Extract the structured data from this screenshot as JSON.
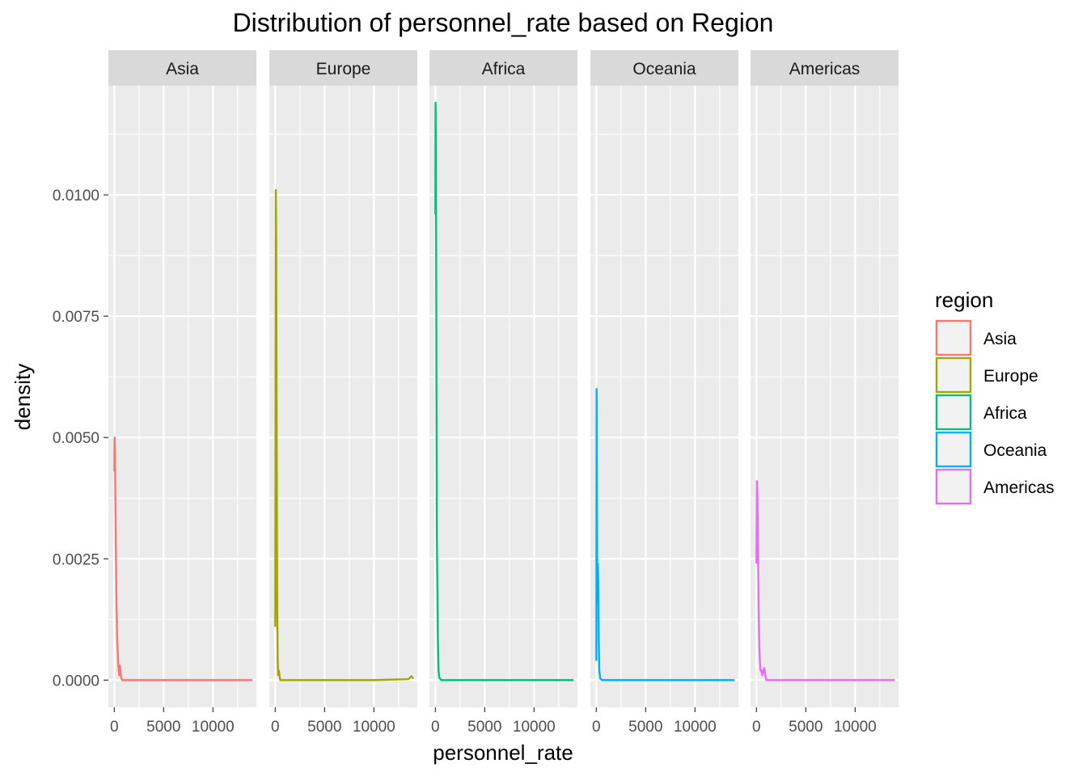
{
  "chart_data": {
    "type": "line",
    "title": "Distribution of personnel_rate based on Region",
    "xlabel": "personnel_rate",
    "ylabel": "density",
    "xlim": [
      -600,
      14400
    ],
    "ylim": [
      -0.00056,
      0.01225
    ],
    "x_ticks": [
      0,
      5000,
      10000
    ],
    "x_tick_labels": [
      "0",
      "5000",
      "10000"
    ],
    "y_ticks": [
      0.0,
      0.0025,
      0.005,
      0.0075,
      0.01
    ],
    "y_tick_labels": [
      "0.0000",
      "0.0025",
      "0.0050",
      "0.0075",
      "0.0100"
    ],
    "grid": true,
    "legend": {
      "title": "region",
      "position": "right"
    },
    "series": [
      {
        "name": "Asia",
        "color": "#F8766D",
        "x": [
          0,
          30,
          60,
          100,
          150,
          220,
          300,
          400,
          500,
          560,
          620,
          700,
          800,
          1000,
          2000,
          5000,
          10000,
          14000
        ],
        "y": [
          0.0043,
          0.005,
          0.0048,
          0.004,
          0.0028,
          0.0016,
          0.0008,
          0.0003,
          0.0001,
          0.0003,
          0.0002,
          5e-05,
          0.0,
          0.0,
          0.0,
          0.0,
          0.0,
          0.0
        ]
      },
      {
        "name": "Europe",
        "color": "#A3A500",
        "x": [
          0,
          30,
          60,
          100,
          150,
          200,
          250,
          300,
          350,
          400,
          500,
          1000,
          5000,
          10000,
          13500,
          13800,
          14000
        ],
        "y": [
          0.0011,
          0.006,
          0.0101,
          0.009,
          0.005,
          0.0015,
          0.0004,
          0.0001,
          0.0002,
          0.00015,
          0.0,
          0.0,
          0.0,
          0.0,
          2e-05,
          8e-05,
          3e-05
        ]
      },
      {
        "name": "Africa",
        "color": "#00BF7D",
        "x": [
          0,
          20,
          50,
          100,
          150,
          200,
          260,
          320,
          400,
          600,
          1000,
          5000,
          10000,
          14000
        ],
        "y": [
          0.0096,
          0.0119,
          0.011,
          0.007,
          0.003,
          0.002,
          0.0008,
          0.0002,
          5e-05,
          0.0,
          0.0,
          0.0,
          0.0,
          0.0
        ]
      },
      {
        "name": "Oceania",
        "color": "#00B0F6",
        "x": [
          0,
          30,
          60,
          100,
          150,
          200,
          250,
          300,
          400,
          600,
          1000,
          5000,
          10000,
          14000
        ],
        "y": [
          0.0004,
          0.006,
          0.004,
          0.0016,
          0.0024,
          0.002,
          0.0008,
          0.0002,
          3e-05,
          0.0,
          0.0,
          0.0,
          0.0,
          0.0
        ]
      },
      {
        "name": "Americas",
        "color": "#E76BF3",
        "x": [
          0,
          50,
          100,
          150,
          220,
          300,
          400,
          500,
          600,
          700,
          800,
          900,
          1000,
          1200,
          5000,
          10000,
          14000
        ],
        "y": [
          0.0024,
          0.0041,
          0.0038,
          0.0028,
          0.0015,
          0.0006,
          0.0002,
          0.0002,
          0.0001,
          0.0002,
          0.00025,
          0.0001,
          0.0,
          0.0,
          0.0,
          0.0,
          0.0
        ]
      }
    ]
  }
}
